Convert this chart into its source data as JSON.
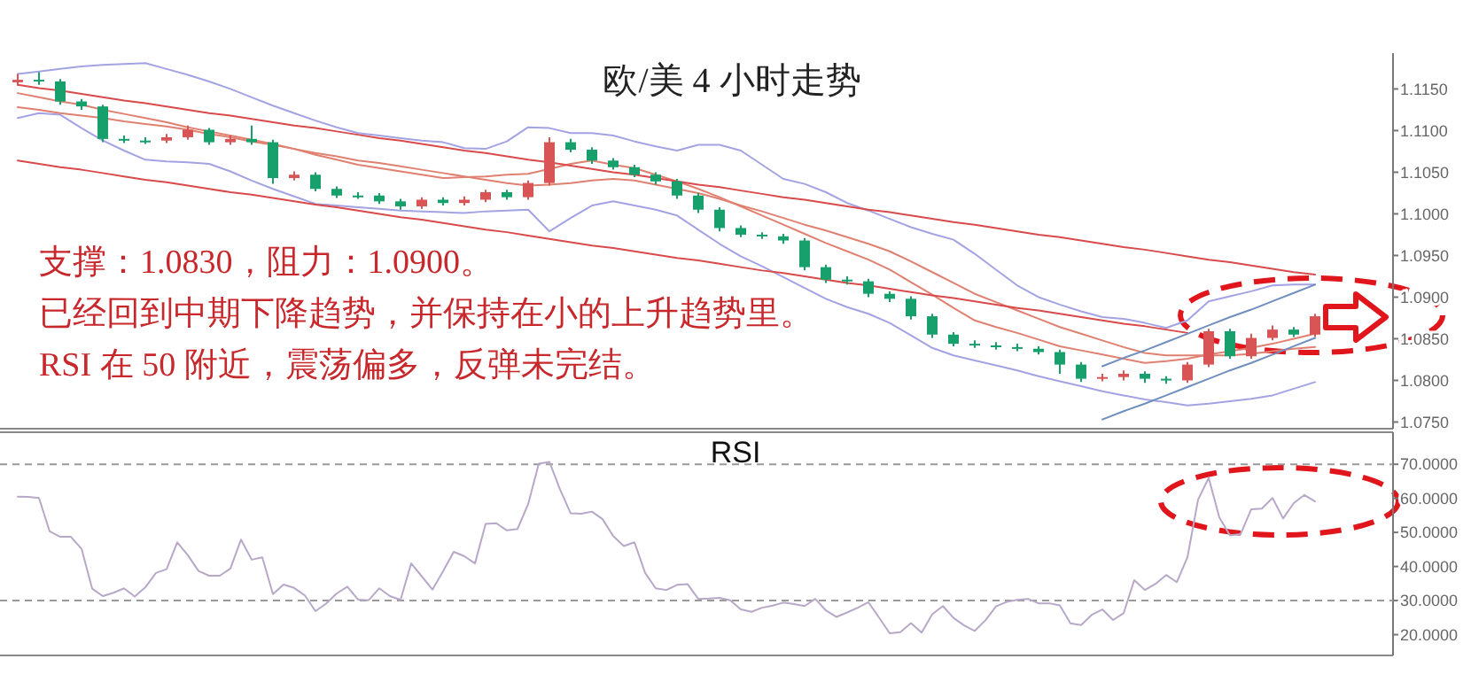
{
  "chart_data": [
    {
      "type": "candlestick",
      "title": "欧/美 4 小时走势",
      "annotations": [
        "支撑：1.0830，阻力：1.0900。",
        "已经回到中期下降趋势，并保持在小的上升趋势里。",
        "RSI 在 50 附近，震荡偏多，反弹未完结。"
      ],
      "categories": [
        null,
        null,
        null,
        null,
        null,
        null,
        null,
        null,
        null,
        null,
        null,
        null,
        null,
        null,
        null,
        null,
        null,
        null,
        null,
        null,
        null,
        null,
        null,
        null,
        null,
        null,
        null,
        null,
        null,
        null,
        null,
        null,
        null,
        null,
        null,
        null,
        null,
        null,
        null,
        null,
        null,
        null,
        null,
        null,
        null,
        null,
        null,
        null,
        null,
        null,
        null,
        null,
        null,
        null,
        null,
        null,
        null,
        null,
        null,
        null,
        null,
        null
      ],
      "ohlc": [
        [
          1.1158,
          1.1168,
          1.1154,
          1.1161
        ],
        [
          1.1161,
          1.117,
          1.1155,
          1.1159
        ],
        [
          1.1159,
          1.1162,
          1.1131,
          1.1135
        ],
        [
          1.1135,
          1.1138,
          1.1125,
          1.1129
        ],
        [
          1.1129,
          1.1131,
          1.1086,
          1.109
        ],
        [
          1.109,
          1.1094,
          1.1085,
          1.1088
        ],
        [
          1.1088,
          1.1092,
          1.1084,
          1.1088
        ],
        [
          1.1088,
          1.1096,
          1.1085,
          1.1092
        ],
        [
          1.1092,
          1.1106,
          1.1089,
          1.1101
        ],
        [
          1.1101,
          1.1103,
          1.1083,
          1.1086
        ],
        [
          1.1086,
          1.1094,
          1.1083,
          1.109
        ],
        [
          1.109,
          1.1106,
          1.1083,
          1.1086
        ],
        [
          1.1086,
          1.1089,
          1.1036,
          1.1043
        ],
        [
          1.1043,
          1.1051,
          1.104,
          1.1047
        ],
        [
          1.1047,
          1.105,
          1.1027,
          1.103
        ],
        [
          1.103,
          1.1033,
          1.1019,
          1.1022
        ],
        [
          1.1022,
          1.1026,
          1.1018,
          1.1022
        ],
        [
          1.1022,
          1.1025,
          1.1012,
          1.1015
        ],
        [
          1.1015,
          1.1018,
          1.1005,
          1.1009
        ],
        [
          1.1009,
          1.102,
          1.1006,
          1.1017
        ],
        [
          1.1017,
          1.102,
          1.101,
          1.1013
        ],
        [
          1.1013,
          1.1021,
          1.101,
          1.1017
        ],
        [
          1.1017,
          1.1029,
          1.1014,
          1.1026
        ],
        [
          1.1026,
          1.1029,
          1.1017,
          1.102
        ],
        [
          1.102,
          1.104,
          1.1017,
          1.1037
        ],
        [
          1.1037,
          1.1092,
          1.1034,
          1.1086
        ],
        [
          1.1086,
          1.109,
          1.1074,
          1.1077
        ],
        [
          1.1077,
          1.108,
          1.106,
          1.1064
        ],
        [
          1.1064,
          1.1067,
          1.1053,
          1.1056
        ],
        [
          1.1056,
          1.1059,
          1.1044,
          1.1047
        ],
        [
          1.1047,
          1.105,
          1.1035,
          1.1039
        ],
        [
          1.1039,
          1.1042,
          1.1018,
          1.1022
        ],
        [
          1.1022,
          1.1025,
          1.1001,
          1.1005
        ],
        [
          1.1005,
          1.1008,
          1.0979,
          1.0983
        ],
        [
          1.0983,
          1.0986,
          1.0972,
          1.0975
        ],
        [
          1.0975,
          1.0978,
          1.097,
          1.0973
        ],
        [
          1.0973,
          1.0976,
          1.0964,
          1.0968
        ],
        [
          1.0968,
          1.0971,
          1.0932,
          1.0936
        ],
        [
          1.0936,
          1.0939,
          1.0917,
          1.0921
        ],
        [
          1.0921,
          1.0925,
          1.0915,
          1.0919
        ],
        [
          1.0919,
          1.0922,
          1.09,
          1.0904
        ],
        [
          1.0904,
          1.0907,
          1.0894,
          1.0898
        ],
        [
          1.0898,
          1.0901,
          1.0873,
          1.0877
        ],
        [
          1.0877,
          1.088,
          1.0851,
          1.0855
        ],
        [
          1.0855,
          1.0858,
          1.0841,
          1.0844
        ],
        [
          1.0844,
          1.0848,
          1.0839,
          1.0842
        ],
        [
          1.0842,
          1.0846,
          1.0837,
          1.084
        ],
        [
          1.084,
          1.0844,
          1.0835,
          1.0838
        ],
        [
          1.0838,
          1.0841,
          1.0831,
          1.0834
        ],
        [
          1.0834,
          1.0837,
          1.0808,
          1.0819
        ],
        [
          1.0819,
          1.0822,
          1.0798,
          1.0802
        ],
        [
          1.0802,
          1.0808,
          1.0799,
          1.0804
        ],
        [
          1.0804,
          1.0812,
          1.08,
          1.0808
        ],
        [
          1.0808,
          1.0811,
          1.0797,
          1.0802
        ],
        [
          1.0802,
          1.0805,
          1.0796,
          1.08
        ],
        [
          1.08,
          1.0822,
          1.0797,
          1.0819
        ],
        [
          1.0819,
          1.0862,
          1.0816,
          1.0859
        ],
        [
          1.0859,
          1.0862,
          1.0826,
          1.0829
        ],
        [
          1.0829,
          1.0856,
          1.0826,
          1.0851
        ],
        [
          1.0851,
          1.0866,
          1.0848,
          1.0861
        ],
        [
          1.0861,
          1.0864,
          1.0852,
          1.0855
        ],
        [
          1.0855,
          1.088,
          1.0852,
          1.0877
        ]
      ],
      "colors": [
        "#d95555",
        "#17a06b",
        "#17a06b",
        "#17a06b",
        "#17a06b",
        "#17a06b",
        "#17a06b",
        "#d95555",
        "#d95555",
        "#17a06b",
        "#d95555",
        "#17a06b",
        "#17a06b",
        "#d95555",
        "#17a06b",
        "#17a06b",
        "#17a06b",
        "#17a06b",
        "#17a06b",
        "#d95555",
        "#17a06b",
        "#d95555",
        "#d95555",
        "#17a06b",
        "#d95555",
        "#d95555",
        "#17a06b",
        "#17a06b",
        "#17a06b",
        "#17a06b",
        "#17a06b",
        "#17a06b",
        "#17a06b",
        "#17a06b",
        "#17a06b",
        "#17a06b",
        "#17a06b",
        "#17a06b",
        "#17a06b",
        "#17a06b",
        "#17a06b",
        "#17a06b",
        "#17a06b",
        "#17a06b",
        "#17a06b",
        "#17a06b",
        "#17a06b",
        "#17a06b",
        "#17a06b",
        "#17a06b",
        "#17a06b",
        "#d95555",
        "#d95555",
        "#17a06b",
        "#17a06b",
        "#d95555",
        "#d95555",
        "#17a06b",
        "#d95555",
        "#d95555",
        "#17a06b",
        "#d95555"
      ],
      "series": [
        {
          "type": "line",
          "color": "#a3a3e3",
          "values": [
            1.1168,
            1.1171,
            1.1174,
            1.1177,
            1.1179,
            1.118,
            1.1181,
            1.1174,
            1.1167,
            1.1159,
            1.115,
            1.114,
            1.113,
            1.1121,
            1.1112,
            1.1104,
            1.1097,
            1.1094,
            1.1091,
            1.1088,
            1.1086,
            1.1079,
            1.1078,
            1.1087,
            1.1104,
            1.1103,
            1.1097,
            1.1097,
            1.1094,
            1.1087,
            1.1081,
            1.1076,
            1.1083,
            1.1083,
            1.1076,
            1.1059,
            1.1042,
            1.1036,
            1.1026,
            1.1013,
            1.1004,
            1.0994,
            1.0984,
            1.0976,
            1.0969,
            1.0952,
            1.0933,
            1.0914,
            1.09,
            1.0891,
            1.0883,
            1.0876,
            1.0874,
            1.0869,
            1.0863,
            1.0872,
            1.0895,
            1.0901,
            1.0907,
            1.0914,
            1.0915,
            1.0915
          ]
        },
        {
          "type": "line",
          "color": "#a3a3e3",
          "values": [
            1.1115,
            1.1121,
            1.1119,
            1.1103,
            1.1088,
            1.1076,
            1.1065,
            1.1063,
            1.1062,
            1.106,
            1.1051,
            1.104,
            1.103,
            1.1021,
            1.1012,
            1.101,
            1.1008,
            1.1006,
            1.1004,
            1.1003,
            1.1002,
            1.1001,
            1.1003,
            1.1004,
            1.1005,
            1.0979,
            1.0995,
            1.101,
            1.1015,
            1.101,
            1.1005,
            1.0998,
            1.0981,
            1.0964,
            1.0949,
            1.0937,
            1.0924,
            1.0911,
            1.0898,
            1.0888,
            1.088,
            1.0869,
            1.0854,
            1.0839,
            1.083,
            1.0824,
            1.0818,
            1.0812,
            1.0805,
            1.0799,
            1.0793,
            1.0787,
            1.0782,
            1.0777,
            1.0774,
            1.077,
            1.0772,
            1.0775,
            1.0778,
            1.0782,
            1.079,
            1.0798
          ]
        },
        {
          "type": "line",
          "color": "#e08070",
          "values": [
            1.1145,
            1.114,
            1.1135,
            1.1131,
            1.1125,
            1.112,
            1.1115,
            1.111,
            1.1104,
            1.1099,
            1.1094,
            1.1089,
            1.1084,
            1.1078,
            1.1071,
            1.1065,
            1.1059,
            1.1055,
            1.1051,
            1.1047,
            1.1043,
            1.1044,
            1.1045,
            1.1047,
            1.1048,
            1.1054,
            1.106,
            1.1064,
            1.1059,
            1.1055,
            1.1047,
            1.1039,
            1.103,
            1.102,
            1.1009,
            1.0998,
            1.0987,
            1.0976,
            1.0965,
            1.0955,
            1.0945,
            1.0933,
            1.0918,
            1.0903,
            1.0887,
            1.0872,
            1.0864,
            1.0857,
            1.0849,
            1.0841,
            1.0836,
            1.0831,
            1.0826,
            1.0821,
            1.0823,
            1.0826,
            1.0831,
            1.0835,
            1.0839,
            1.0844,
            1.085,
            1.0856
          ]
        },
        {
          "type": "line",
          "color": "#e08070",
          "values": [
            1.1128,
            1.1125,
            1.1121,
            1.1118,
            1.1115,
            1.1111,
            1.1108,
            1.1105,
            1.1101,
            1.1096,
            1.1092,
            1.1087,
            1.1083,
            1.1078,
            1.1073,
            1.1069,
            1.1064,
            1.1061,
            1.1057,
            1.1053,
            1.1049,
            1.1045,
            1.1041,
            1.1037,
            1.1034,
            1.1035,
            1.1037,
            1.104,
            1.1042,
            1.104,
            1.1035,
            1.103,
            1.1025,
            1.1018,
            1.101,
            1.1003,
            1.0995,
            1.0987,
            1.098,
            1.0972,
            1.0964,
            1.0955,
            1.0943,
            1.093,
            1.0917,
            1.0904,
            1.0894,
            1.0884,
            1.0874,
            1.0864,
            1.0856,
            1.0848,
            1.084,
            1.0833,
            1.083,
            1.083,
            1.083,
            1.083,
            1.0832,
            1.0835,
            1.0838,
            1.084
          ]
        },
        {
          "type": "line",
          "color": "#d94a4a",
          "values": [
            1.1155,
            1.1151,
            1.1148,
            1.1144,
            1.114,
            1.1136,
            1.1133,
            1.1129,
            1.1125,
            1.1121,
            1.1118,
            1.1114,
            1.111,
            1.1106,
            1.1103,
            1.1099,
            1.1095,
            1.1091,
            1.1088,
            1.1084,
            1.108,
            1.1076,
            1.1073,
            1.1069,
            1.1065,
            1.1062,
            1.1058,
            1.1054,
            1.105,
            1.1047,
            1.1043,
            1.1039,
            1.1035,
            1.1032,
            1.1028,
            1.1024,
            1.102,
            1.1017,
            1.1013,
            1.1009,
            1.1005,
            1.1002,
            1.0998,
            1.0994,
            1.099,
            1.0987,
            1.0983,
            1.0979,
            1.0975,
            1.0972,
            1.0968,
            1.0964,
            1.096,
            1.0957,
            1.0953,
            1.0949,
            1.0945,
            1.0942,
            1.0938,
            1.0934,
            1.093,
            1.0927
          ]
        },
        {
          "type": "line",
          "color": "#d94a4a",
          "values": [
            1.1064,
            1.106,
            1.1056,
            1.1053,
            1.1049,
            1.1045,
            1.1041,
            1.1038,
            1.1034,
            1.103,
            1.1026,
            1.1023,
            1.1019,
            1.1015,
            1.1011,
            1.1008,
            1.1004,
            1.1,
            1.0996,
            1.0993,
            1.0989,
            1.0985,
            1.0981,
            1.0978,
            1.0974,
            1.097,
            1.0966,
            1.0962,
            1.0959,
            1.0955,
            1.0951,
            1.0947,
            1.0944,
            1.094,
            1.0936,
            1.0932,
            1.0929,
            1.0925,
            1.0921,
            1.0917,
            1.0914,
            1.091,
            1.0906,
            1.0902,
            1.0899,
            1.0895,
            1.0891,
            1.0887,
            1.0884,
            1.088,
            1.0876,
            1.0872,
            1.0868,
            1.0865,
            1.0861,
            1.0857,
            null,
            null,
            null,
            null,
            null,
            null
          ]
        },
        {
          "type": "line",
          "color": "#6f8fbf",
          "values": [
            null,
            null,
            null,
            null,
            null,
            null,
            null,
            null,
            null,
            null,
            null,
            null,
            null,
            null,
            null,
            null,
            null,
            null,
            null,
            null,
            null,
            null,
            null,
            null,
            null,
            null,
            null,
            null,
            null,
            null,
            null,
            null,
            null,
            null,
            null,
            null,
            null,
            null,
            null,
            null,
            null,
            null,
            null,
            null,
            null,
            null,
            null,
            null,
            null,
            null,
            null,
            1.0817,
            1.0827,
            1.0836,
            1.0846,
            1.0856,
            1.0866,
            1.0876,
            1.0885,
            1.0895,
            1.0905,
            1.0915
          ]
        },
        {
          "type": "line",
          "color": "#6f8fbf",
          "values": [
            null,
            null,
            null,
            null,
            null,
            null,
            null,
            null,
            null,
            null,
            null,
            null,
            null,
            null,
            null,
            null,
            null,
            null,
            null,
            null,
            null,
            null,
            null,
            null,
            null,
            null,
            null,
            null,
            null,
            null,
            null,
            null,
            null,
            null,
            null,
            null,
            null,
            null,
            null,
            null,
            null,
            null,
            null,
            null,
            null,
            null,
            null,
            null,
            null,
            null,
            null,
            1.0753,
            1.0763,
            1.0772,
            1.0782,
            1.0792,
            1.0802,
            1.0812,
            1.0821,
            1.0831,
            1.0841,
            1.0851
          ]
        }
      ],
      "ylim": [
        1.0742,
        1.1193
      ],
      "yticks": [
        {
          "value": 1.115,
          "label": "1.1150"
        },
        {
          "value": 1.11,
          "label": "1.1100"
        },
        {
          "value": 1.105,
          "label": "1.1050"
        },
        {
          "value": 1.1,
          "label": "1.1000"
        },
        {
          "value": 1.095,
          "label": "1.0950"
        },
        {
          "value": 1.09,
          "label": "1.0900"
        },
        {
          "value": 1.085,
          "label": "1.0850"
        },
        {
          "value": 1.08,
          "label": "1.0800"
        },
        {
          "value": 1.075,
          "label": "1.0750"
        }
      ],
      "tick_labels": "y"
    },
    {
      "type": "line",
      "title": "RSI",
      "categories": [
        null,
        null,
        null,
        null,
        null,
        null,
        null,
        null,
        null,
        null,
        null,
        null,
        null,
        null,
        null,
        null,
        null,
        null,
        null,
        null,
        null,
        null,
        null,
        null,
        null,
        null,
        null,
        null,
        null,
        null,
        null,
        null,
        null,
        null,
        null,
        null,
        null,
        null,
        null,
        null,
        null,
        null,
        null,
        null,
        null,
        null,
        null,
        null,
        null,
        null,
        null,
        null,
        null,
        null,
        null,
        null,
        null,
        null,
        null,
        null,
        null,
        null,
        null,
        null,
        null,
        null,
        null,
        null,
        null,
        null,
        null,
        null,
        null,
        null,
        null,
        null,
        null,
        null,
        null,
        null,
        null,
        null,
        null,
        null,
        null,
        null,
        null,
        null,
        null,
        null,
        null,
        null,
        null,
        null,
        null,
        null,
        null,
        null,
        null,
        null,
        null,
        null,
        null,
        null,
        null,
        null,
        null,
        null,
        null,
        null,
        null,
        null,
        null,
        null,
        null,
        null,
        null,
        null,
        null,
        null,
        null,
        null,
        null
      ],
      "series": [
        {
          "color": "#b8a8c8",
          "values": [
            60.5,
            60.4,
            60.1,
            50.3,
            48.7,
            48.7,
            45.2,
            33.5,
            31.3,
            32.3,
            33.6,
            31.2,
            33.9,
            38.1,
            39.2,
            47.1,
            43.3,
            38.7,
            37.3,
            37.3,
            39.4,
            47.9,
            42.0,
            42.7,
            31.9,
            34.7,
            33.7,
            31.5,
            26.9,
            29.1,
            32.1,
            34.1,
            30.3,
            30.1,
            33.6,
            31.3,
            30.2,
            40.9,
            37.1,
            33.2,
            38.6,
            44.3,
            43.0,
            40.9,
            52.5,
            52.7,
            50.6,
            51.0,
            58.3,
            70.2,
            70.7,
            62.6,
            55.6,
            55.5,
            56.1,
            53.9,
            48.9,
            46.0,
            47.1,
            38.1,
            33.6,
            33.1,
            34.6,
            34.8,
            30.5,
            30.6,
            30.8,
            30.1,
            27.4,
            26.7,
            27.9,
            28.5,
            29.4,
            29.0,
            28.4,
            30.5,
            27.1,
            25.2,
            26.5,
            27.9,
            29.5,
            25.0,
            20.4,
            20.7,
            23.4,
            20.6,
            26.0,
            28.4,
            24.9,
            22.7,
            21.1,
            24.2,
            28.3,
            29.6,
            30.2,
            30.5,
            29.2,
            29.2,
            28.6,
            23.3,
            22.8,
            25.8,
            27.4,
            24.3,
            26.3,
            36.0,
            33.1,
            34.9,
            37.5,
            35.4,
            42.7,
            59.6,
            66.0,
            54.4,
            49.1,
            49.5,
            56.8,
            57.0,
            60.1,
            54.1,
            58.6,
            61.0,
            59.1
          ]
        }
      ],
      "ref_lines": [
        {
          "axis": "y",
          "value": 70,
          "color": "#999999",
          "line_style": "dashed"
        },
        {
          "axis": "y",
          "value": 30,
          "color": "#999999",
          "line_style": "dashed"
        }
      ],
      "ylim": [
        13.9,
        79.4
      ],
      "yticks": [
        {
          "value": 70,
          "label": "70.0000"
        },
        {
          "value": 60,
          "label": "60.0000"
        },
        {
          "value": 50,
          "label": "50.0000"
        },
        {
          "value": 40,
          "label": "40.0000"
        },
        {
          "value": 30,
          "label": "30.0000"
        },
        {
          "value": 20,
          "label": "20.0000"
        }
      ],
      "tick_labels": "y"
    }
  ]
}
